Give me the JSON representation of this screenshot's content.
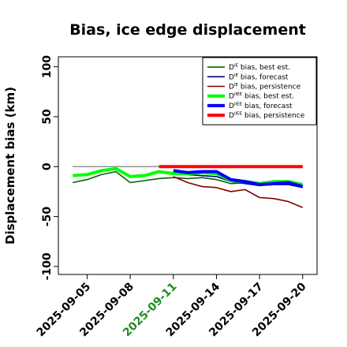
{
  "chart_data": {
    "type": "line",
    "title": "Bias, ice edge displacement",
    "xlabel": "",
    "ylabel": "Displacement bias (km)",
    "x": [
      "2025-09-04",
      "2025-09-05",
      "2025-09-06",
      "2025-09-07",
      "2025-09-08",
      "2025-09-09",
      "2025-09-10",
      "2025-09-11",
      "2025-09-12",
      "2025-09-13",
      "2025-09-14",
      "2025-09-15",
      "2025-09-16",
      "2025-09-17",
      "2025-09-18",
      "2025-09-19",
      "2025-09-20"
    ],
    "x_ticks": [
      "2025-09-05",
      "2025-09-08",
      "2025-09-11",
      "2025-09-14",
      "2025-09-17",
      "2025-09-20"
    ],
    "x_tick_colors": [
      "#000000",
      "#000000",
      "#228B22",
      "#000000",
      "#000000",
      "#000000"
    ],
    "xlim": [
      "2025-09-03",
      "2025-09-21"
    ],
    "ylim": [
      -108,
      110
    ],
    "y_ticks": [
      -100,
      -50,
      0,
      50,
      100
    ],
    "y_tick_labels": [
      "-100",
      "-50",
      "0",
      "50",
      "100"
    ],
    "reference_line": 0,
    "reference_line_color": "#808080",
    "legend_position": "top-right",
    "series": [
      {
        "name": "D^IE bias, best est.",
        "base": "D",
        "sup": "IE",
        "suffix": " bias, best est.",
        "color": "#006400",
        "width": 1.6,
        "values": [
          -16,
          -13,
          -8,
          -5,
          -16,
          -14,
          -12,
          -11,
          -12,
          -11,
          -13,
          -17,
          -16,
          -19,
          -17,
          -17,
          -19
        ]
      },
      {
        "name": "D^IE bias, forecast",
        "base": "D",
        "sup": "IE",
        "suffix": " bias, forecast",
        "color": "#00008B",
        "width": 1.6,
        "values": [
          null,
          null,
          null,
          null,
          null,
          null,
          null,
          -6,
          -8,
          -9,
          -10,
          -15,
          -17,
          -19,
          -18,
          -18,
          -21
        ]
      },
      {
        "name": "D^IE bias, persistence",
        "base": "D",
        "sup": "IE",
        "suffix": " bias, persistence",
        "color": "#800000",
        "width": 1.6,
        "values": [
          null,
          null,
          null,
          null,
          null,
          null,
          null,
          -10,
          -16,
          -20,
          -21,
          -25,
          -23,
          -31,
          -32,
          -35,
          -41
        ]
      },
      {
        "name": "D^IIEE bias, best est.",
        "base": "D",
        "sup": "IIEE",
        "suffix": " bias, best est.",
        "color": "#00FF00",
        "width": 4,
        "values": [
          -9,
          -8,
          -4,
          -2,
          -10,
          -9,
          -5,
          -7,
          -7,
          -6,
          -7,
          -14,
          -15,
          -17,
          -15,
          -15,
          -18
        ]
      },
      {
        "name": "D^IIEE bias, forecast",
        "base": "D",
        "sup": "IIEE",
        "suffix": " bias, forecast",
        "color": "#0000FF",
        "width": 4,
        "values": [
          null,
          null,
          null,
          null,
          null,
          null,
          null,
          -4,
          -6,
          -5,
          -5,
          -13,
          -15,
          -18,
          -17,
          -16,
          -20
        ]
      },
      {
        "name": "D^IIEE bias, persistence",
        "base": "D",
        "sup": "IIEE",
        "suffix": " bias, persistence",
        "color": "#FF0000",
        "width": 4,
        "values": [
          null,
          null,
          null,
          null,
          null,
          null,
          0,
          0,
          0,
          0,
          0,
          0,
          0,
          0,
          0,
          0,
          0
        ]
      }
    ]
  }
}
